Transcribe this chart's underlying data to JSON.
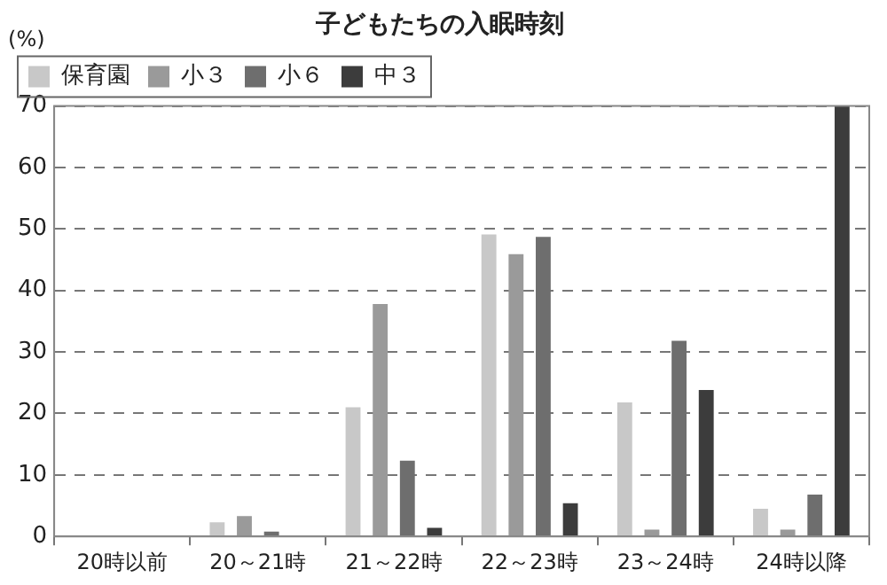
{
  "chart_data": {
    "type": "bar",
    "title": "子どもたちの入眠時刻",
    "ylabel": "(%)",
    "categories": [
      "20時以前",
      "20～21時",
      "21～22時",
      "22～23時",
      "23～24時",
      "24時以降"
    ],
    "series": [
      {
        "name": "保育園",
        "color": "#c8c8c8",
        "values": [
          0,
          2.3,
          21.0,
          49.1,
          21.8,
          4.5
        ]
      },
      {
        "name": "小３",
        "color": "#9a9a9a",
        "values": [
          0,
          3.3,
          37.8,
          45.9,
          1.1,
          1.1
        ]
      },
      {
        "name": "小６",
        "color": "#6e6e6e",
        "values": [
          0,
          0.8,
          12.3,
          48.7,
          31.8,
          6.8
        ]
      },
      {
        "name": "中３",
        "color": "#3c3c3c",
        "values": [
          0,
          0,
          1.4,
          5.4,
          23.8,
          70
        ]
      }
    ],
    "ylim": [
      0,
      70
    ],
    "yticks": [
      0,
      10,
      20,
      30,
      40,
      50,
      60,
      70
    ],
    "grid": "y",
    "legend": "top left"
  }
}
